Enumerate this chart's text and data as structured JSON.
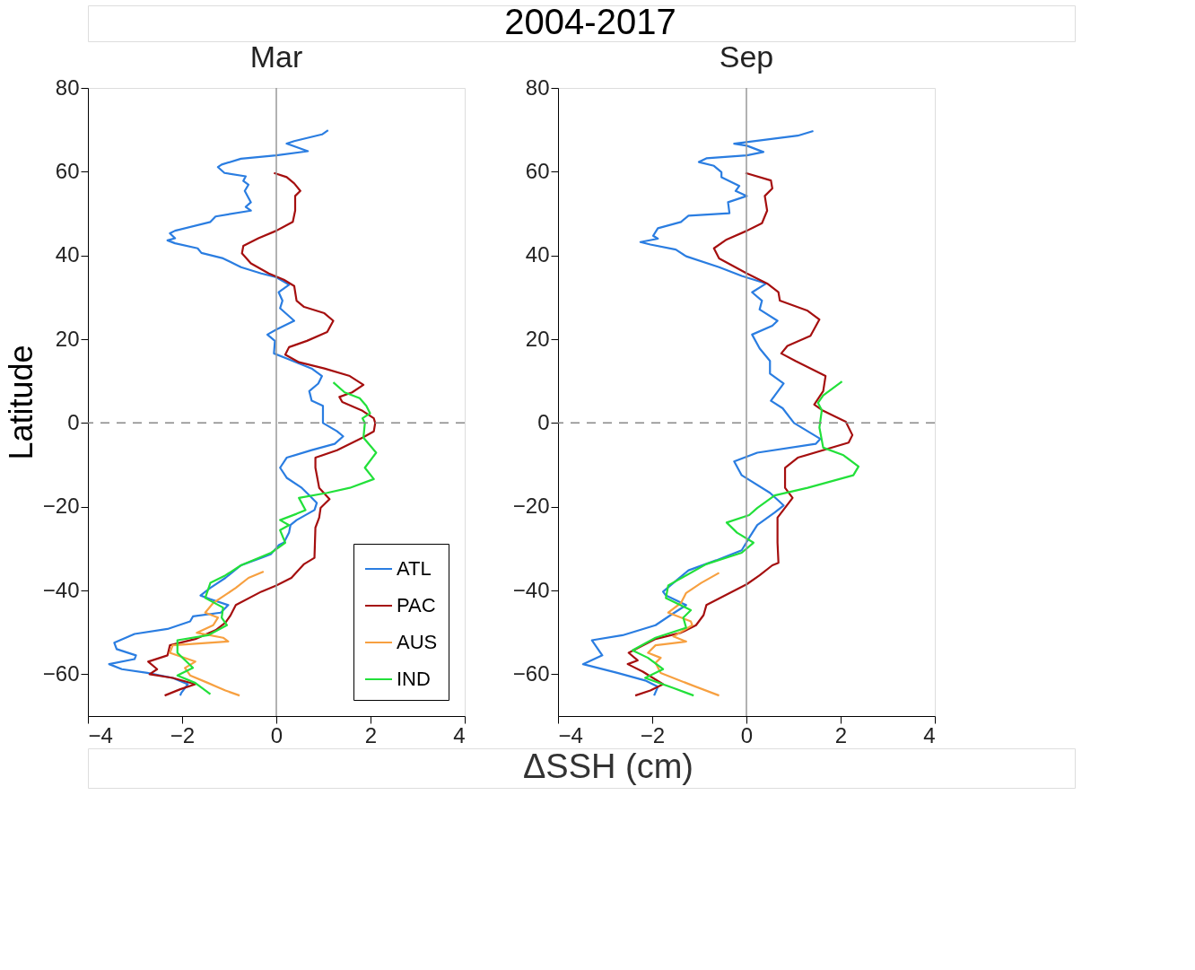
{
  "chart_data": [
    {
      "type": "line",
      "title": "Mar",
      "xlabel": "ΔSSH (cm)",
      "ylabel": "Latitude",
      "annotations": [
        "2004-2017"
      ],
      "xlim": [
        -4,
        4
      ],
      "xticks": [
        -4,
        -2,
        0,
        2,
        4
      ],
      "ylim": [
        -70,
        80
      ],
      "yticks": [
        -60,
        -40,
        -20,
        0,
        20,
        40,
        60,
        80
      ],
      "grid": false,
      "legend": "bottom right",
      "line_style": "solid",
      "ref_lines": [
        {
          "axis": "x",
          "value": 0,
          "color": "#999999",
          "line_style": "solid"
        },
        {
          "axis": "y",
          "value": 0,
          "color": "#888888",
          "line_style": "dashed"
        }
      ],
      "series": [
        {
          "name": "ATL",
          "color": "#2a7de1",
          "x": [
            1.1,
            0.97,
            0.38,
            0.22,
            0.67,
            0,
            -0.75,
            -1.16,
            -1.24,
            -1.1,
            -0.65,
            -0.7,
            -0.59,
            -0.67,
            -0.54,
            -0.65,
            -0.54,
            -1.29,
            -1.4,
            -2.15,
            -2.26,
            -2.15,
            -2.31,
            -2.15,
            -1.67,
            -1.59,
            -1.13,
            -0.75,
            -0.32,
            0,
            0.27,
            0.05,
            0.13,
            0.08,
            0.38,
            0,
            -0.19,
            -0.03,
            -0.05,
            0.22,
            0.75,
            0.97,
            0.89,
            0.7,
            0.75,
            0.99,
            0.99,
            1.29,
            1.42,
            1.24,
            0.75,
            0.22,
            0.08,
            0.22,
            0.54,
            0.7,
            0.86,
            0.81,
            0.43,
            0.3,
            0.27,
            0.16,
            0.05,
            -0.11,
            -0.32,
            -0.75,
            -1.08,
            -1.4,
            -1.61,
            -1.4,
            -1.02,
            -1.18,
            -1.77,
            -1.83,
            -2.31,
            -3.01,
            -3.44,
            -3.39,
            -2.98,
            -3.01,
            -3.55,
            -3.28,
            -2.74,
            -2.2,
            -1.88,
            -2.02,
            -2.04
          ],
          "values": [
            69.9,
            68.9,
            67.3,
            66.7,
            64.9,
            63.9,
            63.1,
            61.7,
            61.1,
            59.7,
            58.9,
            57.8,
            56.9,
            55.4,
            52.7,
            51.6,
            50.7,
            49.3,
            48.0,
            45.9,
            45.3,
            44.1,
            43.6,
            42.9,
            41.7,
            40.6,
            39.3,
            37.2,
            35.7,
            34.8,
            33.0,
            31.2,
            29.2,
            27.4,
            24.4,
            22.3,
            21.1,
            19.6,
            16.6,
            15.4,
            13.0,
            11.2,
            9.4,
            7.6,
            5.3,
            4.1,
            0,
            -2.0,
            -3.2,
            -5.0,
            -6.5,
            -8.3,
            -10.7,
            -13.1,
            -15.5,
            -17.3,
            -19.1,
            -20.8,
            -23.2,
            -24.4,
            -26.2,
            -28.6,
            -29.2,
            -31.3,
            -32.2,
            -34.0,
            -37.0,
            -39.4,
            -41.2,
            -42.1,
            -43.5,
            -45.3,
            -46.2,
            -47.4,
            -49.2,
            -50.4,
            -52.5,
            -54.0,
            -55.5,
            -56.4,
            -57.6,
            -58.8,
            -59.7,
            -60.9,
            -62.4,
            -64.5,
            -65.1
          ]
        },
        {
          "name": "PAC",
          "color": "#a50f0f",
          "x": [
            -0.05,
            0.22,
            0.38,
            0.51,
            0.4,
            0.4,
            0.35,
            0,
            -0.38,
            -0.7,
            -0.73,
            -0.54,
            -0.16,
            0.16,
            0.38,
            0.43,
            0.59,
            1.02,
            1.21,
            1.08,
            0.65,
            0.27,
            0.19,
            0.48,
            1.02,
            1.56,
            1.85,
            1.61,
            1.34,
            1.4,
            1.83,
            2.07,
            2.1,
            2.07,
            1.83,
            1.29,
            0.83,
            0.83,
            0.91,
            1.13,
            0.94,
            0.91,
            0.83,
            0.81,
            0.59,
            0.32,
            0,
            -0.32,
            -0.86,
            -0.97,
            -1.08,
            -1.29,
            -1.72,
            -2.26,
            -2.31,
            -2.72,
            -2.53,
            -2.69,
            -2.2,
            -1.72,
            -2.04,
            -2.37
          ],
          "values": [
            59.7,
            58.7,
            57.2,
            55.4,
            54.2,
            50.7,
            48.0,
            45.9,
            44.1,
            42.3,
            40.5,
            38.1,
            35.7,
            34.2,
            32.7,
            29.2,
            27.7,
            26.2,
            24.4,
            21.7,
            19.6,
            18.1,
            16.3,
            14.5,
            13.0,
            11.2,
            9.1,
            7.3,
            6.2,
            5.0,
            2.9,
            1.1,
            0,
            -2.0,
            -3.5,
            -6.5,
            -8.3,
            -10.7,
            -15.5,
            -18.2,
            -20.3,
            -22.6,
            -25.0,
            -32.2,
            -33.7,
            -37.0,
            -38.8,
            -40.3,
            -43.5,
            -45.9,
            -47.7,
            -49.5,
            -51.6,
            -53.1,
            -55.5,
            -57.0,
            -58.8,
            -60.0,
            -60.9,
            -62.4,
            -63.6,
            -65.1
          ]
        },
        {
          "name": "AUS",
          "color": "#f7a040",
          "x": [
            -0.27,
            -0.59,
            -0.86,
            -1.18,
            -1.34,
            -1.51,
            -1.24,
            -1.34,
            -1.69,
            -1.13,
            -1.02,
            -2.2,
            -2.26,
            -1.72,
            -1.94,
            -1.83,
            -1.45,
            -1.08,
            -0.78
          ],
          "values": [
            -35.5,
            -37.0,
            -39.4,
            -41.8,
            -43.0,
            -45.3,
            -46.5,
            -48.3,
            -50.1,
            -51.3,
            -52.2,
            -53.1,
            -54.9,
            -57.0,
            -58.5,
            -60.3,
            -62.1,
            -63.9,
            -65.1
          ]
        },
        {
          "name": "IND",
          "color": "#22e03a",
          "x": [
            1.21,
            1.45,
            1.77,
            1.91,
            1.99,
            1.83,
            1.88,
            1.85,
            2.12,
            1.88,
            2.07,
            1.56,
            1.08,
            0.48,
            0.62,
            0.43,
            0.08,
            0.27,
            0.08,
            0.19,
            -0.11,
            -0.75,
            -1.08,
            -1.4,
            -1.51,
            -1.13,
            -1.16,
            -1.05,
            -1.45,
            -2.1,
            -2.1,
            -1.77,
            -2.1,
            -1.72,
            -1.4
          ],
          "values": [
            9.7,
            7.3,
            5.9,
            4.1,
            2.3,
            1.1,
            0,
            -3.5,
            -7.1,
            -10.7,
            -13.4,
            -15.5,
            -16.7,
            -17.9,
            -20.8,
            -21.7,
            -23.2,
            -24.4,
            -25.6,
            -28.6,
            -31.0,
            -34.0,
            -36.4,
            -38.2,
            -41.8,
            -44.1,
            -46.5,
            -48.3,
            -50.7,
            -51.9,
            -54.9,
            -58.5,
            -60.3,
            -62.1,
            -64.8
          ]
        }
      ]
    },
    {
      "type": "line",
      "title": "Sep",
      "xlim": [
        -4,
        4
      ],
      "xticks": [
        -4,
        -2,
        0,
        2,
        4
      ],
      "ylim": [
        -70,
        80
      ],
      "yticks": [
        -60,
        -40,
        -20,
        0,
        20,
        40,
        60,
        80
      ],
      "grid": false,
      "legend": false,
      "line_style": "solid",
      "ref_lines": [
        {
          "axis": "x",
          "value": 0,
          "color": "#999999",
          "line_style": "solid"
        },
        {
          "axis": "y",
          "value": 0,
          "color": "#888888",
          "line_style": "dashed"
        }
      ],
      "series": [
        {
          "color": "#2a7de1",
          "x": [
            1.42,
            1.09,
            -0.26,
            0.01,
            0.36,
            0.01,
            -0.85,
            -1.01,
            -0.69,
            -0.53,
            -0.53,
            -0.15,
            -0.23,
            0.01,
            -0.39,
            -0.36,
            -1.23,
            -1.39,
            -1.88,
            -1.98,
            -1.88,
            -2.25,
            -2.04,
            -1.5,
            -1.28,
            -0.58,
            -0.1,
            0.42,
            0.12,
            0.33,
            0.28,
            0.66,
            0.55,
            0.12,
            0.28,
            0.5,
            0.5,
            0.79,
            0.52,
            0.77,
            1.01,
            1.57,
            1.47,
            0.23,
            -0.26,
            -0.1,
            0.5,
            0.79,
            0.6,
            0.23,
            0.06,
            -0.1,
            -0.64,
            -1.23,
            -1.55,
            -1.77,
            -1.71,
            -1.28,
            -1.61,
            -1.93,
            -2.63,
            -3.28,
            -3.06,
            -3.47,
            -2.74,
            -2.15,
            -1.88,
            -1.96
          ],
          "values": [
            69.7,
            68.6,
            66.7,
            66.2,
            64.7,
            63.9,
            63.2,
            62.3,
            61.4,
            59.9,
            58.7,
            56.6,
            55.4,
            54.2,
            52.7,
            50.1,
            49.5,
            48.0,
            46.5,
            44.7,
            44.0,
            43.2,
            42.6,
            41.4,
            39.8,
            37.2,
            35.1,
            33.3,
            31.2,
            29.2,
            27.1,
            24.4,
            23.2,
            21.1,
            17.8,
            14.8,
            11.8,
            9.4,
            5.3,
            3.5,
            0,
            -3.8,
            -5.0,
            -7.1,
            -9.2,
            -12.5,
            -16.7,
            -19.7,
            -21.4,
            -24.4,
            -27.4,
            -30.4,
            -32.8,
            -35.2,
            -38.2,
            -40.3,
            -41.2,
            -43.5,
            -45.9,
            -48.3,
            -50.7,
            -51.9,
            -55.5,
            -57.6,
            -59.7,
            -61.5,
            -63.0,
            -65.1
          ]
        },
        {
          "color": "#a50f0f",
          "x": [
            -0.02,
            0.52,
            0.55,
            0.39,
            0.44,
            0.33,
            0.01,
            -0.42,
            -0.69,
            -0.58,
            0.01,
            0.44,
            0.68,
            0.71,
            1.3,
            1.55,
            1.36,
            0.87,
            0.74,
            1.04,
            1.68,
            1.63,
            1.44,
            1.63,
            2.11,
            2.25,
            2.17,
            1.09,
            0.82,
            0.82,
            0.98,
            0.66,
            0.66,
            0.68,
            0.55,
            0.28,
            0.01,
            -0.85,
            -0.91,
            -1.07,
            -1.39,
            -1.93,
            -2.5,
            -2.31,
            -2.52,
            -2.2,
            -1.77,
            -2.04,
            -2.36
          ],
          "values": [
            59.7,
            57.9,
            56.0,
            54.2,
            50.7,
            47.7,
            45.9,
            43.8,
            41.7,
            39.3,
            35.7,
            33.3,
            31.2,
            29.2,
            26.8,
            24.7,
            20.8,
            18.4,
            16.6,
            14.8,
            11.2,
            7.6,
            4.4,
            2.9,
            0.3,
            -2.9,
            -4.7,
            -8.3,
            -10.7,
            -15.5,
            -17.9,
            -22.6,
            -28.6,
            -33.4,
            -34.0,
            -36.4,
            -38.5,
            -43.5,
            -45.9,
            -48.3,
            -50.1,
            -51.6,
            -54.9,
            -56.7,
            -57.6,
            -59.4,
            -62.4,
            -63.9,
            -65.1
          ]
        },
        {
          "color": "#f7a040",
          "x": [
            -0.58,
            -0.96,
            -1.28,
            -1.39,
            -1.66,
            -1.18,
            -1.15,
            -1.55,
            -1.28,
            -1.93,
            -2.09,
            -1.82,
            -1.93,
            -1.82,
            -1.28,
            -0.58
          ],
          "values": [
            -35.8,
            -38.2,
            -40.6,
            -43.0,
            -45.3,
            -47.4,
            -48.3,
            -51.0,
            -52.2,
            -53.1,
            -54.9,
            -56.1,
            -57.3,
            -59.7,
            -62.1,
            -65.1
          ]
        },
        {
          "color": "#22e03a",
          "x": [
            2.03,
            1.63,
            1.52,
            1.6,
            1.55,
            1.63,
            2.06,
            2.38,
            2.27,
            1.3,
            0.6,
            0.23,
            0.06,
            -0.42,
            -0.2,
            0.15,
            -0.1,
            -0.85,
            -1.28,
            -1.66,
            -1.71,
            -1.18,
            -1.34,
            -1.28,
            -1.93,
            -2.42,
            -2.09,
            -1.77,
            -2.15,
            -1.55,
            -1.12
          ],
          "values": [
            9.9,
            6.6,
            4.8,
            3.0,
            -1.1,
            -5.9,
            -7.7,
            -10.4,
            -12.5,
            -15.5,
            -17.3,
            -20.3,
            -22.0,
            -23.8,
            -26.2,
            -28.6,
            -31.0,
            -33.7,
            -36.4,
            -38.8,
            -41.8,
            -44.7,
            -46.5,
            -48.9,
            -51.3,
            -54.3,
            -56.1,
            -58.8,
            -60.9,
            -63.3,
            -65.1
          ]
        }
      ]
    }
  ]
}
